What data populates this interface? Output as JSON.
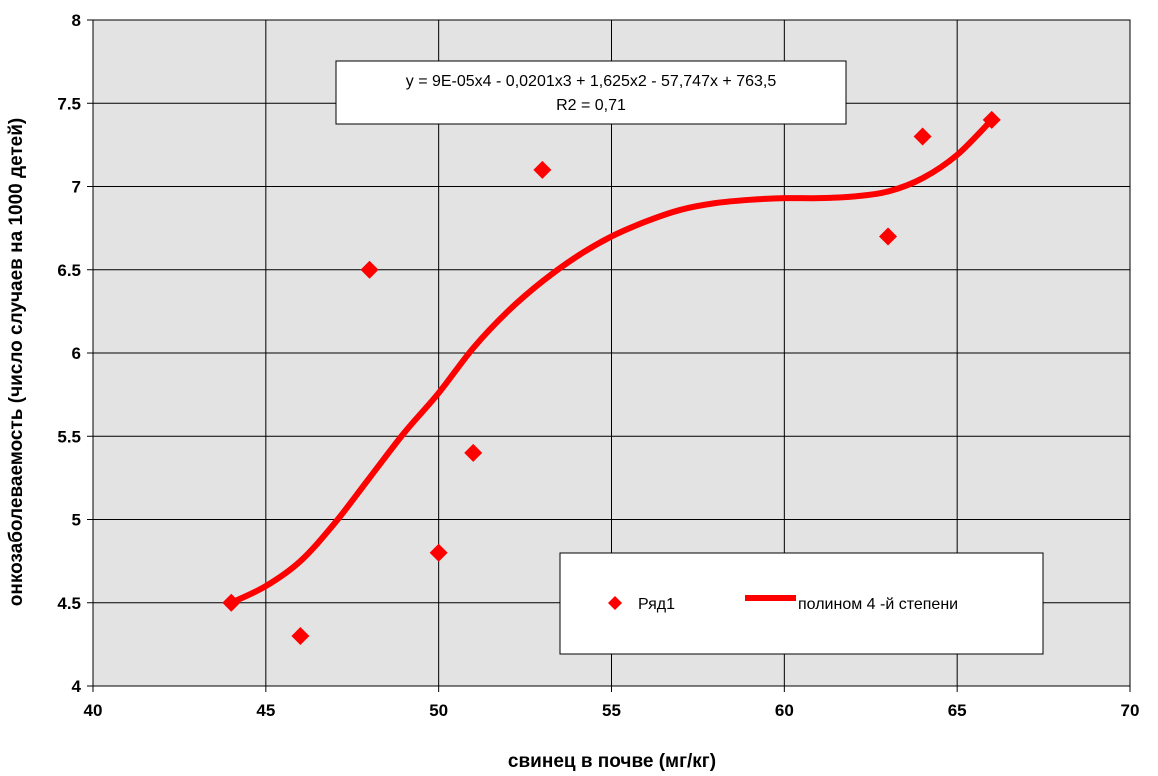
{
  "chart_data": {
    "type": "scatter",
    "xlabel": "свинец в почве (мг/кг)",
    "ylabel": "онкозаболеваемость (число случаев на 1000 детей)",
    "xlim": [
      40,
      70
    ],
    "ylim": [
      4,
      8
    ],
    "x_ticks": [
      "40",
      "45",
      "50",
      "55",
      "60",
      "65",
      "70"
    ],
    "y_ticks": [
      "4",
      "4.5",
      "5",
      "5.5",
      "6",
      "6.5",
      "7",
      "7.5",
      "8"
    ],
    "grid": true,
    "plot_background": "#e3e3e3",
    "series": [
      {
        "name": "Ряд1",
        "kind": "scatter",
        "marker": "diamond",
        "color": "#ff0000",
        "points": [
          {
            "x": 44,
            "y": 4.5
          },
          {
            "x": 46,
            "y": 4.3
          },
          {
            "x": 48,
            "y": 6.5
          },
          {
            "x": 50,
            "y": 4.8
          },
          {
            "x": 51,
            "y": 5.4
          },
          {
            "x": 53,
            "y": 7.1
          },
          {
            "x": 63,
            "y": 6.7
          },
          {
            "x": 64,
            "y": 7.3
          },
          {
            "x": 66,
            "y": 7.4
          }
        ]
      },
      {
        "name": "полином 4 -й степени",
        "kind": "trendline",
        "color": "#ff0000",
        "points": [
          {
            "x": 44,
            "y": 4.5
          },
          {
            "x": 45,
            "y": 4.6
          },
          {
            "x": 46,
            "y": 4.75
          },
          {
            "x": 47,
            "y": 4.98
          },
          {
            "x": 48,
            "y": 5.25
          },
          {
            "x": 49,
            "y": 5.52
          },
          {
            "x": 50,
            "y": 5.76
          },
          {
            "x": 51,
            "y": 6.03
          },
          {
            "x": 52,
            "y": 6.25
          },
          {
            "x": 53,
            "y": 6.43
          },
          {
            "x": 54,
            "y": 6.58
          },
          {
            "x": 55,
            "y": 6.7
          },
          {
            "x": 56,
            "y": 6.79
          },
          {
            "x": 57,
            "y": 6.86
          },
          {
            "x": 58,
            "y": 6.9
          },
          {
            "x": 59,
            "y": 6.92
          },
          {
            "x": 60,
            "y": 6.93
          },
          {
            "x": 61,
            "y": 6.93
          },
          {
            "x": 62,
            "y": 6.94
          },
          {
            "x": 63,
            "y": 6.97
          },
          {
            "x": 64,
            "y": 7.05
          },
          {
            "x": 65,
            "y": 7.19
          },
          {
            "x": 66,
            "y": 7.4
          }
        ]
      }
    ],
    "annotation": {
      "line1": "y = 9E-05x4 - 0,0201x3 + 1,625x2 - 57,747x + 763,5",
      "line2": "R2 = 0,71"
    },
    "legend": {
      "placement": "bottom-right",
      "items": [
        "Ряд1",
        "полином 4 -й степени"
      ]
    }
  }
}
